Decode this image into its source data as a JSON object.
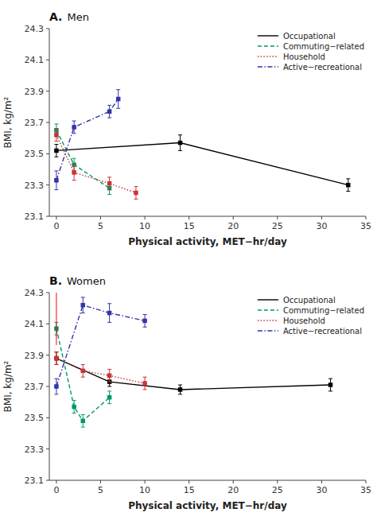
{
  "chart_data": [
    {
      "type": "line",
      "title": "Men",
      "annotations": [
        {
          "text": "A."
        }
      ],
      "xlabel": "Physical activity, MET−hr/day",
      "ylabel": "BMI, kg/m²",
      "xlim": [
        -0.8,
        35
      ],
      "ylim": [
        23.1,
        24.3
      ],
      "xticks": [
        0,
        5,
        10,
        15,
        20,
        25,
        30,
        35
      ],
      "yticks": [
        23.1,
        23.3,
        23.5,
        23.7,
        23.9,
        24.1,
        24.3
      ],
      "grid": false,
      "legend": "upper right",
      "series": [
        {
          "name": "Occupational",
          "color": "#000000",
          "line_style": "solid",
          "marker": "square",
          "x": [
            0,
            14,
            33
          ],
          "values": [
            23.52,
            23.57,
            23.3
          ],
          "errors": [
            0.04,
            0.05,
            0.04
          ]
        },
        {
          "name": "Commuting−related",
          "color": "#009966",
          "line_style": "dashed",
          "marker": "square",
          "x": [
            0,
            2,
            6
          ],
          "values": [
            23.65,
            23.43,
            23.28
          ],
          "errors": [
            0.04,
            0.04,
            0.04
          ]
        },
        {
          "name": "Household",
          "color": "#cc3333",
          "line_style": "dotted",
          "marker": "square",
          "x": [
            0,
            2,
            6,
            9
          ],
          "values": [
            23.62,
            23.38,
            23.31,
            23.25
          ],
          "errors": [
            0.04,
            0.05,
            0.04,
            0.04
          ]
        },
        {
          "name": "Active−recreational",
          "color": "#3333aa",
          "line_style": "dashdot",
          "marker": "square",
          "x": [
            0,
            2,
            6,
            7
          ],
          "values": [
            23.33,
            23.67,
            23.77,
            23.85
          ],
          "errors": [
            0.06,
            0.04,
            0.04,
            0.06
          ]
        }
      ]
    },
    {
      "type": "line",
      "title": "Women",
      "annotations": [
        {
          "text": "B."
        },
        {
          "type": "vline",
          "x": 0,
          "color": "#ff0000"
        }
      ],
      "xlabel": "Physical activity, MET−hr/day",
      "ylabel": "BMI, kg/m²",
      "xlim": [
        -0.8,
        35
      ],
      "ylim": [
        23.1,
        24.3
      ],
      "xticks": [
        0,
        5,
        10,
        15,
        20,
        25,
        30,
        35
      ],
      "yticks": [
        23.1,
        23.3,
        23.5,
        23.7,
        23.9,
        24.1,
        24.3
      ],
      "grid": false,
      "legend": "upper right",
      "series": [
        {
          "name": "Occupational",
          "color": "#000000",
          "line_style": "solid",
          "marker": "square",
          "x": [
            0,
            6,
            14,
            31
          ],
          "values": [
            23.88,
            23.73,
            23.68,
            23.71
          ],
          "errors": [
            0.04,
            0.03,
            0.03,
            0.04
          ]
        },
        {
          "name": "Commuting−related",
          "color": "#009966",
          "line_style": "dashed",
          "marker": "square",
          "x": [
            0,
            2,
            3,
            6
          ],
          "values": [
            24.07,
            23.57,
            23.48,
            23.63
          ],
          "errors": [
            0.04,
            0.04,
            0.04,
            0.04
          ]
        },
        {
          "name": "Household",
          "color": "#cc3333",
          "line_style": "dotted",
          "marker": "square",
          "x": [
            0,
            3,
            6,
            10
          ],
          "values": [
            23.88,
            23.8,
            23.77,
            23.72
          ],
          "errors": [
            0.04,
            0.04,
            0.04,
            0.04
          ]
        },
        {
          "name": "Active−recreational",
          "color": "#3333aa",
          "line_style": "dashdot",
          "marker": "square",
          "x": [
            0,
            3,
            6,
            10
          ],
          "values": [
            23.7,
            24.22,
            24.17,
            24.12
          ],
          "errors": [
            0.05,
            0.05,
            0.06,
            0.04
          ]
        }
      ]
    }
  ]
}
